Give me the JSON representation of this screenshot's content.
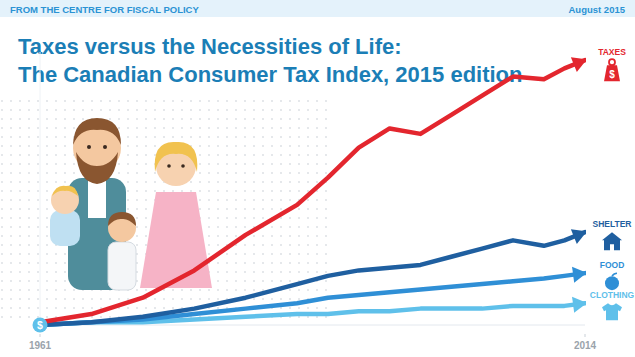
{
  "chart_data": {
    "type": "line",
    "header": [
      "FROM THE CENTRE FOR FISCAL POLICY",
      "August 2015"
    ],
    "title": "Taxes versus the Necessities of Life:",
    "subtitle": "The Canadian Consumer Tax Index, 2015 edition",
    "x": [
      1961,
      1966,
      1971,
      1976,
      1981,
      1986,
      1989,
      1992,
      1995,
      1998,
      2001,
      2004,
      2007,
      2010,
      2012,
      2014
    ],
    "xlim": [
      1961,
      2014
    ],
    "xticks": [
      1961,
      2014
    ],
    "ylim": [
      0,
      100
    ],
    "tick_labels": "x",
    "grid": false,
    "annotations": [
      "$",
      "$"
    ],
    "series": [
      {
        "name": "TAXES",
        "color": "#e3262e",
        "values": [
          1,
          4,
          10,
          20,
          33,
          44,
          54,
          65,
          72,
          70,
          77,
          84,
          91,
          90,
          94,
          97
        ]
      },
      {
        "name": "SHELTER",
        "color": "#1f5fa0",
        "values": [
          0,
          1,
          3,
          6,
          10,
          15,
          18,
          20,
          21,
          22,
          25,
          28,
          31,
          29,
          31,
          34
        ]
      },
      {
        "name": "FOOD",
        "color": "#2f8fd6",
        "values": [
          0,
          1,
          2,
          4,
          6,
          8,
          10,
          11,
          12,
          13,
          14,
          15,
          16,
          17,
          18,
          19
        ]
      },
      {
        "name": "CLOTHING",
        "color": "#5fc0ea",
        "values": [
          0,
          1,
          1,
          2,
          3,
          4,
          4,
          5,
          5,
          6,
          6,
          6,
          7,
          7,
          7,
          8
        ]
      }
    ]
  }
}
